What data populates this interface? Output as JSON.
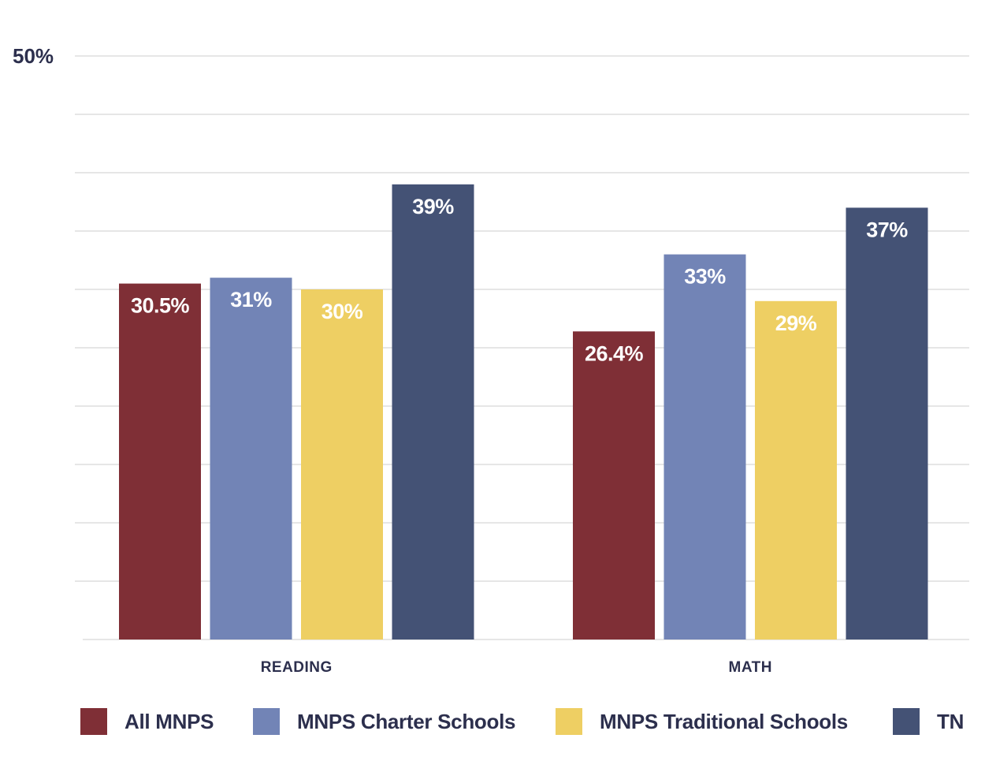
{
  "chart_data": {
    "type": "bar",
    "categories": [
      "READING",
      "MATH"
    ],
    "series": [
      {
        "name": "All MNPS",
        "values": [
          30.5,
          26.4
        ],
        "labels": [
          "30.5%",
          "26.4%"
        ],
        "color": "#7f2f36"
      },
      {
        "name": "MNPS Charter Schools",
        "values": [
          31,
          33
        ],
        "labels": [
          "31%",
          "33%"
        ],
        "color": "#7284b6"
      },
      {
        "name": "MNPS Traditional Schools",
        "values": [
          30,
          29
        ],
        "labels": [
          "30%",
          "29%"
        ],
        "color": "#eecf63"
      },
      {
        "name": "TN",
        "values": [
          39,
          37
        ],
        "labels": [
          "39%",
          "37%"
        ],
        "color": "#445275"
      }
    ],
    "ylim": [
      0,
      50
    ],
    "yticks": [
      {
        "value": 50,
        "label": "50%"
      }
    ],
    "gridlines": [
      5,
      10,
      15,
      20,
      25,
      30,
      35,
      40,
      45,
      50
    ],
    "title": "",
    "xlabel": "",
    "ylabel": "",
    "legend": "bottom",
    "grid": true
  },
  "colors": {
    "text": "#2c2f4d",
    "grid": "#e6e6e6"
  }
}
